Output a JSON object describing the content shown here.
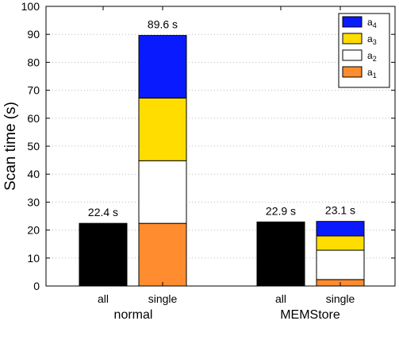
{
  "chart_data": {
    "type": "bar",
    "stacked": true,
    "ylabel": "Scan time (s)",
    "ylim": [
      0,
      100
    ],
    "yticks": [
      0,
      10,
      20,
      30,
      40,
      50,
      60,
      70,
      80,
      90,
      100
    ],
    "grid": "horizontal dotted",
    "legend_position": "top-right",
    "legend": [
      {
        "name": "a",
        "sub": "4",
        "color": "#0a1aff"
      },
      {
        "name": "a",
        "sub": "3",
        "color": "#ffdd00"
      },
      {
        "name": "a",
        "sub": "2",
        "color": "#ffffff"
      },
      {
        "name": "a",
        "sub": "1",
        "color": "#ff8c2e"
      }
    ],
    "groups": [
      {
        "label": "normal",
        "bars": [
          {
            "label": "all",
            "color": "#000000",
            "segments": [
              22.4
            ],
            "total_label": "22.4 s"
          },
          {
            "label": "single",
            "segments": [
              22.4,
              22.4,
              22.4,
              22.4
            ],
            "total_label": "89.6 s"
          }
        ]
      },
      {
        "label": "MEMStore",
        "bars": [
          {
            "label": "all",
            "color": "#000000",
            "segments": [
              22.9
            ],
            "total_label": "22.9 s"
          },
          {
            "label": "single",
            "segments": [
              2.3,
              10.5,
              5.1,
              5.2
            ],
            "total_label": "23.1 s"
          }
        ]
      }
    ]
  }
}
